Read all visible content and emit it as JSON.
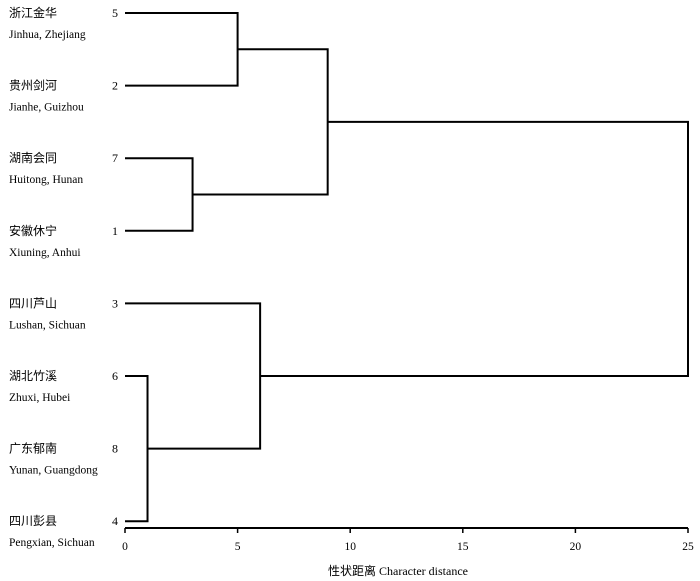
{
  "chart_data": {
    "type": "dendrogram",
    "xlabel": "性状距离 Character distance",
    "xlim": [
      0,
      25
    ],
    "xticks": [
      "0",
      "5",
      "10",
      "15",
      "20",
      "25"
    ],
    "tick_values": [
      0,
      5,
      10,
      15,
      20,
      25
    ],
    "leaves": [
      {
        "id": "5",
        "label_cn": "浙江金华",
        "label_en": "Jinhua, Zhejiang"
      },
      {
        "id": "2",
        "label_cn": "贵州剑河",
        "label_en": "Jianhe, Guizhou"
      },
      {
        "id": "7",
        "label_cn": "湖南会同",
        "label_en": "Huitong, Hunan"
      },
      {
        "id": "1",
        "label_cn": "安徽休宁",
        "label_en": "Xiuning, Anhui"
      },
      {
        "id": "3",
        "label_cn": "四川芦山",
        "label_en": "Lushan, Sichuan"
      },
      {
        "id": "6",
        "label_cn": "湖北竹溪",
        "label_en": "Zhuxi, Hubei"
      },
      {
        "id": "8",
        "label_cn": "广东郁南",
        "label_en": "Yunan, Guangdong"
      },
      {
        "id": "4",
        "label_cn": "四川彭县",
        "label_en": "Pengxian, Sichuan"
      }
    ],
    "merges": [
      {
        "a": "leaf:6",
        "b": "leaf:4",
        "height": 1
      },
      {
        "a": "leaf:7",
        "b": "leaf:1",
        "height": 3
      },
      {
        "a": "leaf:5",
        "b": "leaf:2",
        "height": 5
      },
      {
        "a": "leaf:3",
        "b": "merge:0",
        "height": 6
      },
      {
        "a": "merge:2",
        "b": "merge:1",
        "height": 9
      },
      {
        "a": "merge:4",
        "b": "merge:3",
        "height": 25
      }
    ]
  }
}
